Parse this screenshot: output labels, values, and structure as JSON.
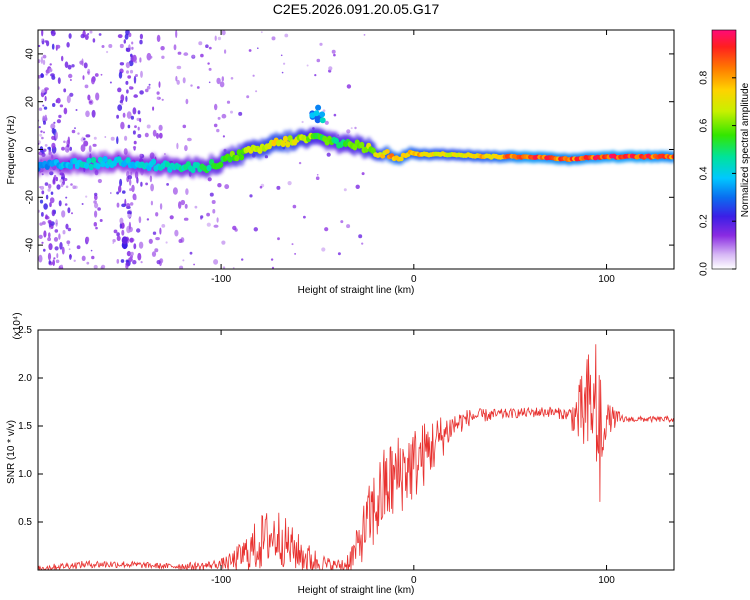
{
  "chart_data": [
    {
      "type": "heatmap",
      "title": "C2E5.2026.091.20.05.G17",
      "xlabel": "Height of straight line (km)",
      "ylabel": "Frequency (Hz)",
      "xlim": [
        -195,
        135
      ],
      "ylim": [
        -50,
        50
      ],
      "xticks": [
        -100,
        0,
        100
      ],
      "xtick_labels": [
        "-100",
        "0",
        "100"
      ],
      "yticks": [
        -40,
        -20,
        0,
        20,
        40
      ],
      "ytick_labels": [
        "-40",
        "-20",
        "0",
        "20",
        "40"
      ],
      "colorbar": {
        "label": "Normalized spectral amplitude",
        "range": [
          0,
          1
        ],
        "ticks": [
          0.0,
          0.2,
          0.4,
          0.6,
          0.8
        ],
        "tick_labels": [
          "0.0",
          "0.2",
          "0.4",
          "0.6",
          "0.8"
        ]
      },
      "ridge": {
        "heights": [
          -190,
          -170,
          -150,
          -130,
          -110,
          -100,
          -90,
          -80,
          -70,
          -60,
          -50,
          -40,
          -30,
          -20,
          -10,
          0,
          20,
          40,
          60,
          80,
          100,
          120,
          135
        ],
        "frequency": [
          -7,
          -6,
          -5,
          -7,
          -8,
          -5,
          -2,
          0,
          3,
          4,
          5,
          3,
          2,
          -1,
          -3,
          -2,
          -2,
          -3,
          -3,
          -4,
          -3,
          -3,
          -3
        ],
        "amplitude": [
          0.35,
          0.45,
          0.4,
          0.45,
          0.5,
          0.55,
          0.65,
          0.7,
          0.75,
          0.7,
          0.6,
          0.55,
          0.6,
          0.7,
          0.85,
          0.8,
          0.75,
          0.8,
          0.95,
          0.9,
          0.95,
          0.95,
          0.9
        ]
      },
      "blob": {
        "height": -50,
        "frequency": 15,
        "amplitude": 0.4
      }
    },
    {
      "type": "line",
      "xlabel": "Height of straight line (km)",
      "ylabel": "SNR (10 * v/v)",
      "scale_label": "(x10⁴)",
      "xlim": [
        -195,
        135
      ],
      "ylim": [
        0,
        2.5
      ],
      "xticks": [
        -100,
        0,
        100
      ],
      "xtick_labels": [
        "-100",
        "0",
        "100"
      ],
      "yticks": [
        0.5,
        1.0,
        1.5,
        2.0,
        2.5
      ],
      "ytick_labels": [
        "0.5",
        "1.0",
        "1.5",
        "2.0",
        "2.5"
      ],
      "color": "#e8312f",
      "envelope": {
        "x": [
          -195,
          -170,
          -150,
          -130,
          -110,
          -95,
          -85,
          -75,
          -70,
          -65,
          -55,
          -45,
          -35,
          -30,
          -25,
          -20,
          -15,
          -10,
          -5,
          0,
          10,
          20,
          30,
          50,
          70,
          85,
          90,
          93,
          96,
          100,
          110,
          120,
          135
        ],
        "y": [
          0.02,
          0.06,
          0.06,
          0.04,
          0.04,
          0.08,
          0.2,
          0.35,
          0.35,
          0.25,
          0.12,
          0.05,
          0.05,
          0.2,
          0.45,
          0.65,
          0.85,
          0.95,
          1.05,
          1.1,
          1.3,
          1.5,
          1.6,
          1.63,
          1.65,
          1.6,
          1.65,
          1.75,
          1.2,
          1.58,
          1.57,
          1.57,
          1.57
        ]
      },
      "noise": {
        "x": [
          -195,
          -160,
          -130,
          -100,
          -90,
          -80,
          -70,
          -60,
          -40,
          -30,
          -20,
          -10,
          0,
          10,
          20,
          30,
          50,
          80,
          85,
          90,
          93,
          96,
          98,
          110,
          135
        ],
        "amplitude": [
          0.03,
          0.04,
          0.03,
          0.05,
          0.15,
          0.3,
          0.3,
          0.2,
          0.05,
          0.2,
          0.45,
          0.45,
          0.4,
          0.3,
          0.15,
          0.08,
          0.05,
          0.06,
          0.3,
          0.6,
          0.85,
          0.9,
          0.2,
          0.03,
          0.03
        ]
      }
    }
  ]
}
